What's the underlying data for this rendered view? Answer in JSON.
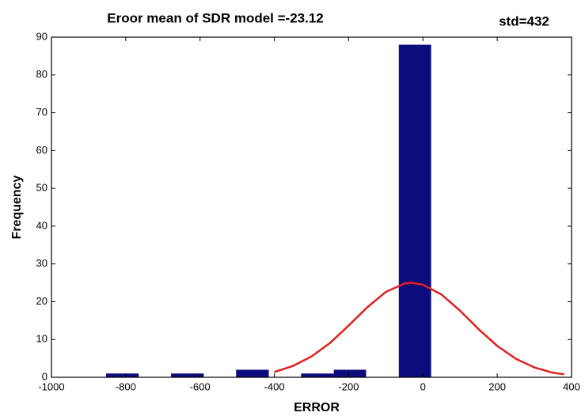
{
  "chart_data": {
    "type": "histogram",
    "title": "Eroor mean of SDR model =-23.12",
    "subtitle": "std=432",
    "xlabel": "ERROR",
    "ylabel": "Frequency",
    "bins": [
      -853,
      -765,
      -678,
      -590,
      -503,
      -415,
      -328,
      -240,
      -153,
      -65,
      22
    ],
    "values": [
      1,
      0,
      1,
      0,
      2,
      0,
      1,
      2,
      0,
      88
    ],
    "color": "#0c0c7c",
    "curve": {
      "type": "line",
      "color": "#e02020",
      "x": [
        -400,
        -350,
        -300,
        -250,
        -200,
        -150,
        -100,
        -50,
        -30,
        0,
        50,
        100,
        150,
        200,
        250,
        300,
        350,
        380
      ],
      "values": [
        1.4,
        3.0,
        5.5,
        9.1,
        13.7,
        18.5,
        22.6,
        24.8,
        25,
        24.5,
        21.9,
        17.6,
        12.7,
        8.3,
        4.9,
        2.6,
        1.2,
        0.8
      ]
    },
    "xlim": [
      -1000,
      400
    ],
    "ylim": [
      0,
      90
    ],
    "xticks": [
      -1000,
      -800,
      -600,
      -400,
      -200,
      0,
      200,
      400
    ],
    "yticks": [
      0,
      10,
      20,
      30,
      40,
      50,
      60,
      70,
      80,
      90
    ],
    "grid": false
  }
}
